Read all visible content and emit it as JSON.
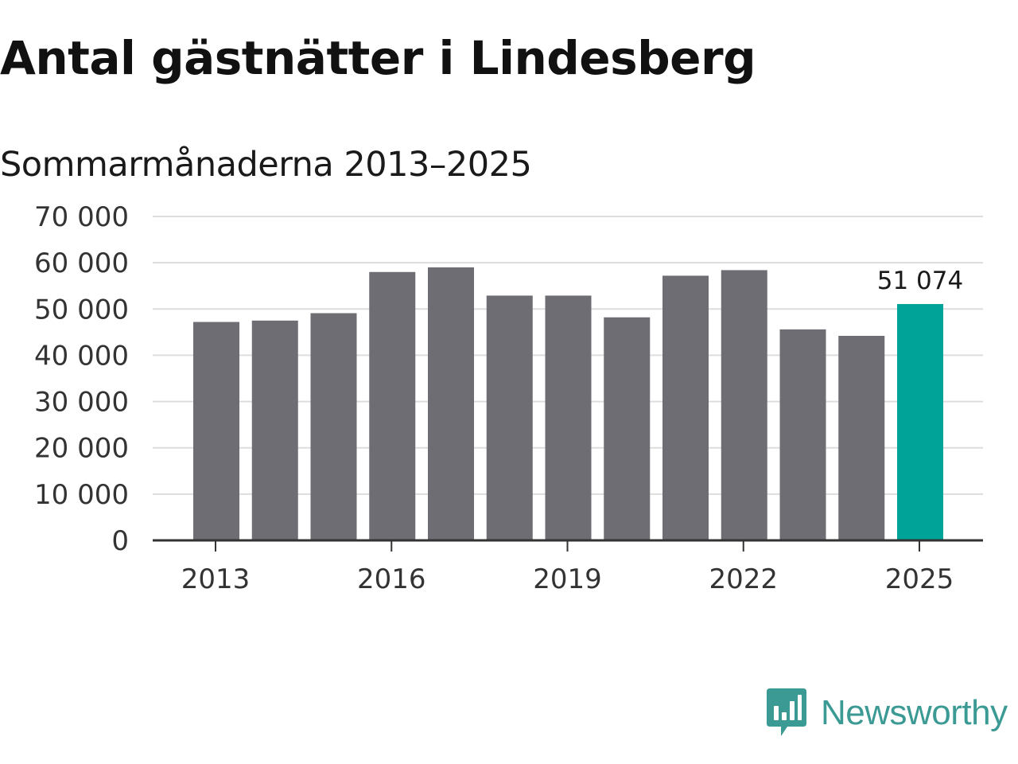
{
  "brand": {
    "name": "Newsworthy",
    "icon": "newsworthy-logo-icon",
    "color": "#3c9a94"
  },
  "chart_data": {
    "type": "bar",
    "title": "Antal gästnätter i Lindesberg",
    "subtitle": "Sommarmånaderna 2013–2025",
    "xlabel": "",
    "ylabel": "",
    "categories": [
      "2013",
      "2014",
      "2015",
      "2016",
      "2017",
      "2018",
      "2019",
      "2020",
      "2021",
      "2022",
      "2023",
      "2024",
      "2025"
    ],
    "values": [
      47200,
      47500,
      49100,
      58000,
      59000,
      52900,
      52900,
      48200,
      57200,
      58400,
      45600,
      44200,
      51074
    ],
    "x_tick_labels": [
      "2013",
      "2016",
      "2019",
      "2022",
      "2025"
    ],
    "y_tick_values": [
      0,
      10000,
      20000,
      30000,
      40000,
      50000,
      60000,
      70000
    ],
    "y_tick_labels": [
      "0",
      "10 000",
      "20 000",
      "30 000",
      "40 000",
      "50 000",
      "60 000",
      "70 000"
    ],
    "ylim": [
      0,
      70000
    ],
    "grid": true,
    "legend": "none",
    "annotations": [
      {
        "category": "2025",
        "text": "51 074"
      }
    ],
    "colors": {
      "bar": "#6e6d73",
      "highlight": "#00a398",
      "grid": "#dddddd",
      "axis": "#333333"
    },
    "highlight_category": "2025"
  }
}
